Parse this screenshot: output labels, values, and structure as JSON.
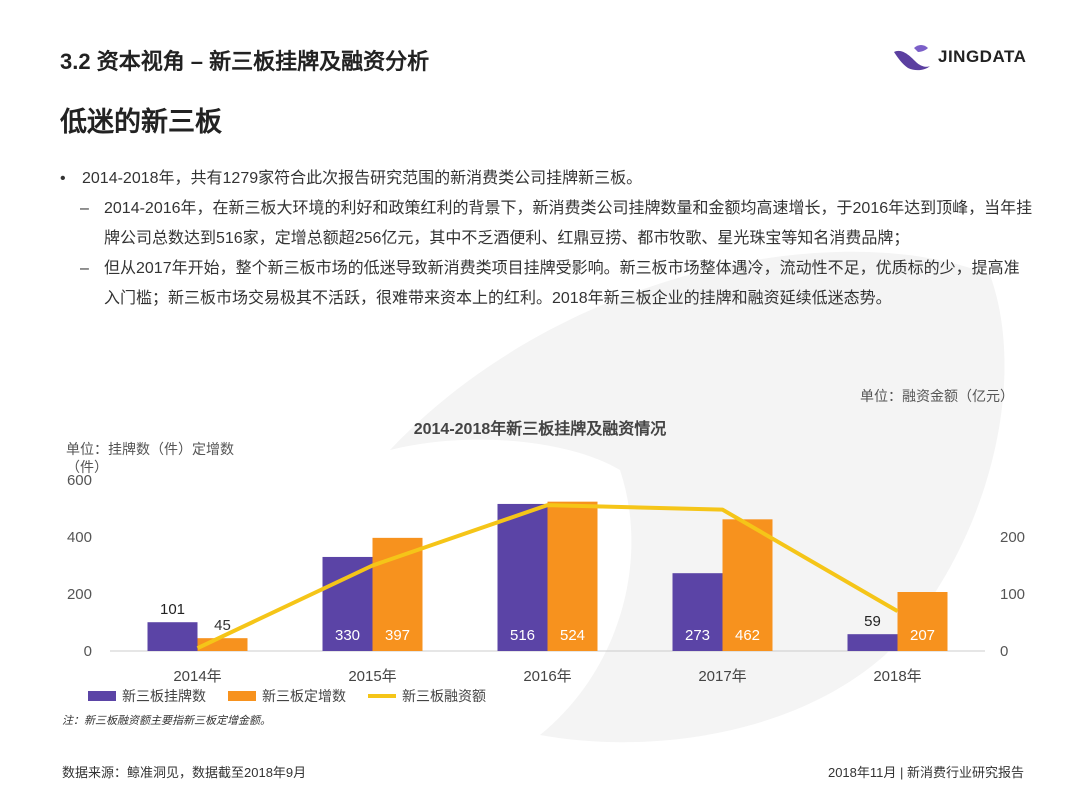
{
  "header": {
    "section_title": "3.2 资本视角 – 新三板挂牌及融资分析"
  },
  "logo": {
    "text": "JINGDATA"
  },
  "main_title": "低迷的新三板",
  "paragraphs": [
    {
      "marker": "•",
      "text": "2014-2018年，共有1279家符合此次报告研究范围的新消费类公司挂牌新三板。"
    },
    {
      "marker": "–",
      "text": "2014-2016年，在新三板大环境的利好和政策红利的背景下，新消费类公司挂牌数量和金额均高速增长，于2016年达到顶峰，当年挂牌公司总数达到516家，定增总额超256亿元，其中不乏酒便利、红鼎豆捞、都市牧歌、星光珠宝等知名消费品牌；"
    },
    {
      "marker": "–",
      "text": "但从2017年开始，整个新三板市场的低迷导致新消费类项目挂牌受影响。新三板市场整体遇冷，流动性不足，优质标的少，提高准入门槛；新三板市场交易极其不活跃，很难带来资本上的红利。2018年新三板企业的挂牌和融资延续低迷态势。"
    }
  ],
  "unit_right": "单位：融资金额（亿元）",
  "unit_left": "单位：挂牌数（件）定增数（件）",
  "note": "注：新三板融资额主要指新三板定增金额。",
  "footer": {
    "source": "数据来源：鲸准洞见，数据截至2018年9月",
    "right": "2018年11月 | 新消费行业研究报告"
  },
  "colors": {
    "bar1": "#5B44A6",
    "bar2": "#F7921E",
    "line": "#F5C518",
    "text": "#333333"
  },
  "chart_data": {
    "type": "bar",
    "title": "2014-2018年新三板挂牌及融资情况",
    "categories": [
      "2014年",
      "2015年",
      "2016年",
      "2017年",
      "2018年"
    ],
    "series": [
      {
        "name": "新三板挂牌数",
        "type": "bar",
        "axis": "left",
        "values": [
          101,
          330,
          516,
          273,
          59
        ]
      },
      {
        "name": "新三板定增数",
        "type": "bar",
        "axis": "left",
        "values": [
          45,
          397,
          524,
          462,
          207
        ]
      },
      {
        "name": "新三板融资额",
        "type": "line",
        "axis": "right",
        "values": [
          5,
          150,
          256,
          248,
          70
        ]
      }
    ],
    "ylim_left": [
      0,
      600
    ],
    "yticks_left": [
      0,
      200,
      400,
      600
    ],
    "ylim_right": [
      0,
      300
    ],
    "yticks_right": [
      0,
      100,
      200
    ],
    "xlabel": "",
    "ylabel": "挂牌数（件）定增数（件）",
    "ylabel_right": "融资金额（亿元）",
    "grid": false,
    "legend": "bottom-left"
  }
}
